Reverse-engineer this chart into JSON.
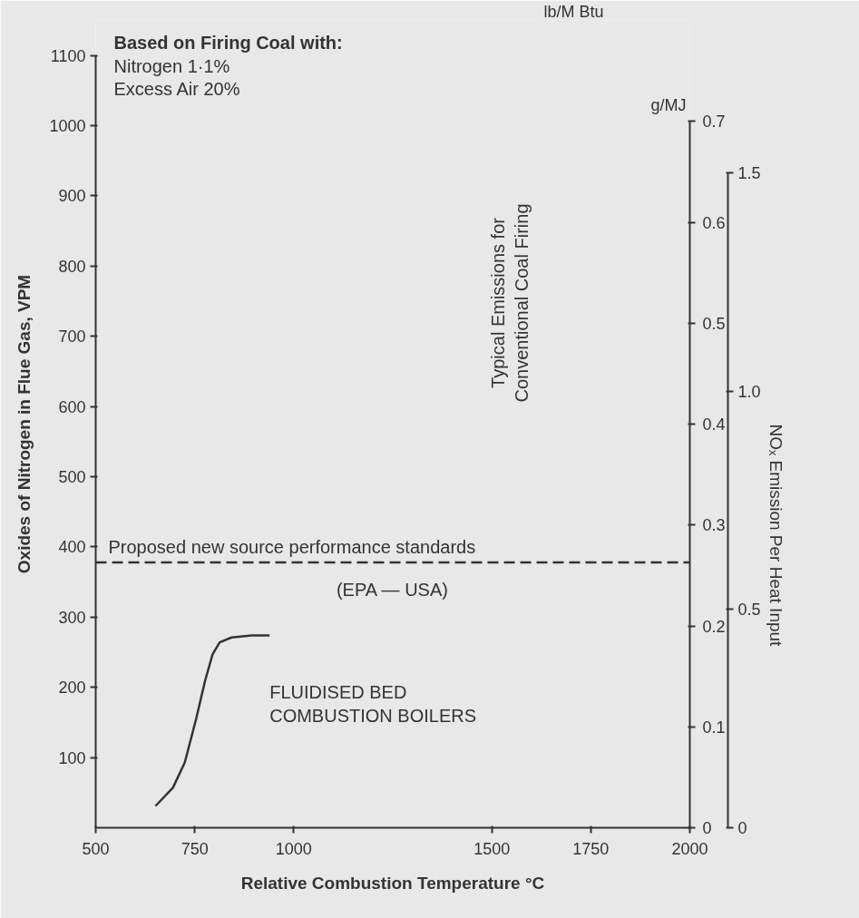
{
  "chart_data": {
    "type": "line",
    "xlabel": "Relative Combustion Temperature °C",
    "ylabel": "Oxides of Nitrogen in Flue Gas, VPM",
    "y2label": "g/MJ",
    "y3label": "NOₓ Emission Per Heat Input",
    "xlim": [
      500,
      2000
    ],
    "xticks": [
      500,
      750,
      1000,
      1500,
      1750,
      2000
    ],
    "ylim": [
      0,
      1150
    ],
    "yticks": [
      100,
      200,
      300,
      400,
      500,
      600,
      700,
      800,
      900,
      1000,
      1100
    ],
    "y2lim": [
      0,
      0.8
    ],
    "y2ticks": [
      0,
      0.1,
      0.2,
      0.3,
      0.4,
      0.5,
      0.6,
      0.7
    ],
    "y3lim": [
      0,
      1.85
    ],
    "y3ticks": [
      0,
      0.5,
      {
        "value": 1.0,
        "label": "1.0"
      },
      1.5
    ],
    "grid": false,
    "series": [
      {
        "name": "FLUIDISED BED COMBUSTION BOILERS",
        "color": "#333333",
        "x": [
          651,
          695,
          725,
          754,
          776,
          795,
          813,
          843,
          894,
          939
        ],
        "values": [
          31,
          57,
          93,
          156,
          209,
          247,
          264,
          271,
          274,
          274
        ]
      }
    ],
    "ref_lines": [
      {
        "axis": "y",
        "value": 378,
        "label": "Proposed new source performance standards",
        "color": "#333333",
        "line_style": "dashed"
      }
    ],
    "annotations": [
      "Based on Firing Coal with:",
      "Nitrogen 1·1%",
      "Excess Air 20%",
      "Typical Emissions for",
      "Conventional Coal Firing",
      "(EPA — USA)",
      "lb/M Btu"
    ]
  }
}
